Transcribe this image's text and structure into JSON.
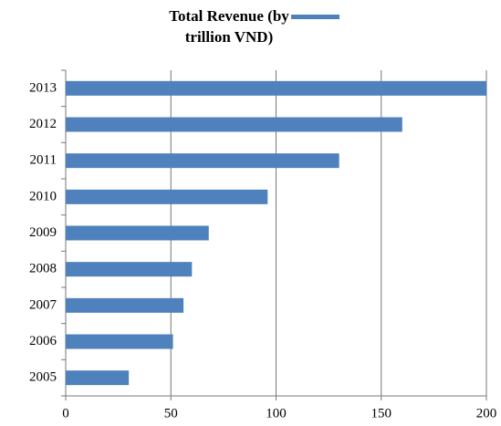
{
  "chart_data": {
    "type": "bar",
    "orientation": "horizontal",
    "categories": [
      "2005",
      "2006",
      "2007",
      "2008",
      "2009",
      "2010",
      "2011",
      "2012",
      "2013"
    ],
    "series": [
      {
        "name": "Total Revenue (by trillion VND)",
        "color": "#4f81bd",
        "values": [
          30,
          51,
          56,
          60,
          68,
          96,
          130,
          160,
          200
        ]
      }
    ],
    "xlim": [
      0,
      200
    ],
    "xticks": [
      0,
      50,
      100,
      150,
      200
    ],
    "grid": true,
    "legend": "top"
  }
}
